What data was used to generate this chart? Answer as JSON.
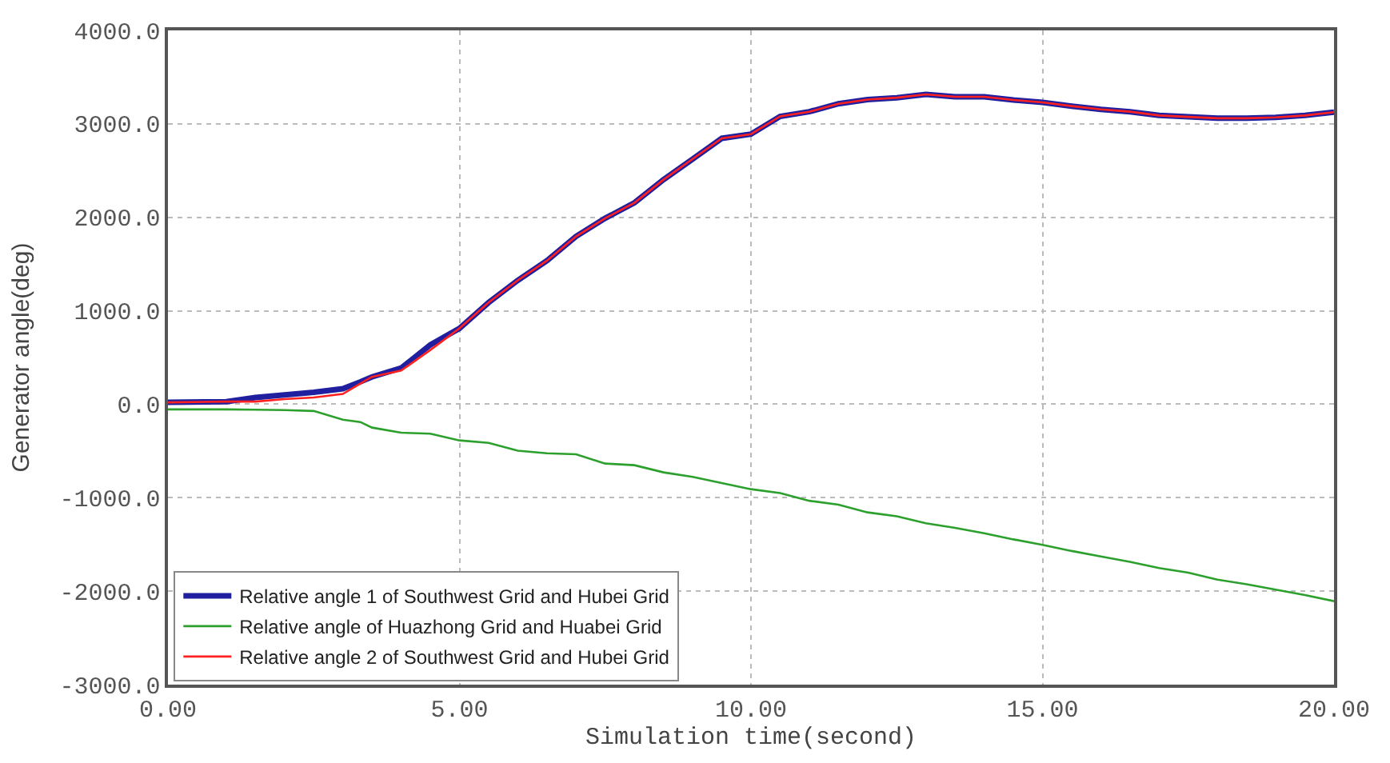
{
  "chart_data": {
    "type": "line",
    "xlabel": "Simulation time(second)",
    "ylabel": "Generator angle(deg)",
    "x": [
      0,
      1,
      1.5,
      2,
      2.5,
      3,
      3.3,
      3.5,
      4,
      4.5,
      5,
      5.5,
      6,
      6.5,
      7,
      7.5,
      8,
      8.5,
      9,
      9.5,
      10,
      10.5,
      11,
      11.5,
      12,
      12.5,
      13,
      13.5,
      14,
      14.5,
      15,
      15.5,
      16,
      16.5,
      17,
      17.5,
      18,
      18.5,
      19,
      19.5,
      20
    ],
    "series": [
      {
        "name": "Relative angle 1 of Southwest Grid and Hubei Grid",
        "color": "#1f1f9f",
        "values": [
          20,
          28,
          72,
          100,
          127,
          166,
          240,
          293,
          387,
          635,
          812,
          1088,
          1326,
          1536,
          1796,
          1990,
          2155,
          2403,
          2624,
          2845,
          2890,
          3080,
          3130,
          3215,
          3260,
          3280,
          3315,
          3290,
          3290,
          3255,
          3230,
          3190,
          3155,
          3130,
          3090,
          3075,
          3060,
          3060,
          3070,
          3090,
          3125
        ]
      },
      {
        "name": "Relative angle of Huazhong Grid and Huabei Grid",
        "color": "#2ca02c",
        "values": [
          -55,
          -55,
          -58,
          -62,
          -72,
          -166,
          -190,
          -250,
          -304,
          -315,
          -387,
          -414,
          -497,
          -525,
          -536,
          -635,
          -652,
          -729,
          -777,
          -843,
          -909,
          -950,
          -1033,
          -1074,
          -1157,
          -1198,
          -1273,
          -1322,
          -1380,
          -1446,
          -1504,
          -1570,
          -1628,
          -1686,
          -1752,
          -1802,
          -1876,
          -1926,
          -1983,
          -2041,
          -2107
        ]
      },
      {
        "name": "Relative angle 2 of Southwest Grid and Hubei Grid",
        "color": "#ff2020",
        "values": [
          20,
          28,
          28,
          55,
          72,
          110,
          220,
          293,
          360,
          580,
          812,
          1088,
          1326,
          1536,
          1796,
          1990,
          2155,
          2403,
          2624,
          2845,
          2890,
          3080,
          3130,
          3215,
          3260,
          3280,
          3315,
          3290,
          3290,
          3255,
          3230,
          3190,
          3155,
          3130,
          3090,
          3075,
          3060,
          3060,
          3070,
          3090,
          3125
        ]
      }
    ],
    "xlim": [
      0,
      20
    ],
    "xticks": [
      {
        "value": 0,
        "label": "0.00"
      },
      {
        "value": 5,
        "label": "5.00"
      },
      {
        "value": 10,
        "label": "10.00"
      },
      {
        "value": 15,
        "label": "15.00"
      },
      {
        "value": 20,
        "label": "20.00"
      }
    ],
    "ylim": [
      -3000,
      4000
    ],
    "yticks": [
      {
        "value": -3000,
        "label": "-3000.0"
      },
      {
        "value": -2000,
        "label": "-2000.0"
      },
      {
        "value": -1000,
        "label": "-1000.0"
      },
      {
        "value": 0,
        "label": "0.0"
      },
      {
        "value": 1000,
        "label": "1000.0"
      },
      {
        "value": 2000,
        "label": "2000.0"
      },
      {
        "value": 3000,
        "label": "3000.0"
      },
      {
        "value": 4000,
        "label": "4000.0"
      }
    ],
    "grid": true,
    "legend": "bottom left",
    "marker": "none",
    "line_style": "solid"
  }
}
